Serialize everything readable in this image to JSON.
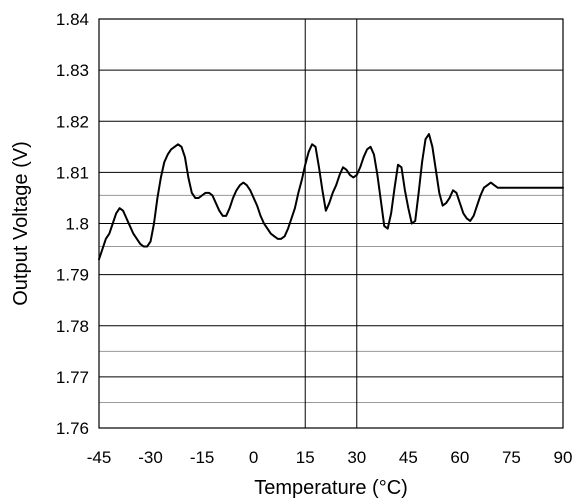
{
  "chart_data": {
    "type": "line",
    "title": "",
    "xlabel": "Temperature (°C)",
    "ylabel": "Output Voltage (V)",
    "xlim": [
      -45,
      90
    ],
    "ylim": [
      1.76,
      1.84
    ],
    "xticks": [
      "-45",
      "-30",
      "-15",
      "0",
      "15",
      "30",
      "45",
      "60",
      "75",
      "90"
    ],
    "yticks": [
      "1.76",
      "1.77",
      "1.78",
      "1.79",
      "1.8",
      "1.81",
      "1.82",
      "1.83",
      "1.84"
    ],
    "grid": true,
    "legend": "none",
    "series": [
      {
        "color": "#000000",
        "x": [
          -45,
          -44,
          -43,
          -42,
          -41,
          -40,
          -39,
          -38,
          -37,
          -36,
          -35,
          -34,
          -33,
          -32,
          -31,
          -30,
          -29,
          -28,
          -27,
          -26,
          -25,
          -24,
          -23,
          -22,
          -21,
          -20,
          -19,
          -18,
          -17,
          -16,
          -15,
          -14,
          -13,
          -12,
          -11,
          -10,
          -9,
          -8,
          -7,
          -6,
          -5,
          -4,
          -3,
          -2,
          -1,
          0,
          1,
          2,
          3,
          4,
          5,
          6,
          7,
          8,
          9,
          10,
          11,
          12,
          13,
          14,
          15,
          16,
          17,
          18,
          19,
          20,
          21,
          22,
          23,
          24,
          25,
          26,
          27,
          28,
          29,
          30,
          31,
          32,
          33,
          34,
          35,
          36,
          37,
          38,
          39,
          40,
          41,
          42,
          43,
          44,
          45,
          46,
          47,
          48,
          49,
          50,
          51,
          52,
          53,
          54,
          55,
          56,
          57,
          58,
          59,
          60,
          61,
          62,
          63,
          64,
          65,
          66,
          67,
          68,
          69,
          70,
          71,
          72,
          73,
          74,
          75,
          76,
          77,
          78,
          79,
          80,
          81,
          82,
          83,
          84,
          85,
          86,
          87,
          88,
          89,
          90
        ],
        "y": [
          1.793,
          1.795,
          1.797,
          1.798,
          1.8,
          1.802,
          1.803,
          1.8025,
          1.801,
          1.7995,
          1.798,
          1.797,
          1.796,
          1.7955,
          1.7955,
          1.7965,
          1.8,
          1.805,
          1.809,
          1.812,
          1.8135,
          1.8145,
          1.815,
          1.8155,
          1.815,
          1.813,
          1.809,
          1.806,
          1.805,
          1.805,
          1.8055,
          1.806,
          1.806,
          1.8055,
          1.804,
          1.8025,
          1.8015,
          1.8015,
          1.803,
          1.805,
          1.8065,
          1.8075,
          1.808,
          1.8075,
          1.8065,
          1.805,
          1.8035,
          1.8015,
          1.8,
          1.799,
          1.798,
          1.7975,
          1.797,
          1.797,
          1.7975,
          1.799,
          1.801,
          1.803,
          1.806,
          1.8085,
          1.8115,
          1.814,
          1.8155,
          1.815,
          1.811,
          1.8065,
          1.8025,
          1.804,
          1.806,
          1.8075,
          1.8095,
          1.811,
          1.8105,
          1.8095,
          1.809,
          1.8095,
          1.811,
          1.813,
          1.8145,
          1.815,
          1.8135,
          1.8095,
          1.8045,
          1.7995,
          1.799,
          1.802,
          1.807,
          1.8115,
          1.811,
          1.8065,
          1.803,
          1.8,
          1.8005,
          1.806,
          1.812,
          1.8165,
          1.8175,
          1.815,
          1.8105,
          1.806,
          1.8035,
          1.804,
          1.805,
          1.8065,
          1.806,
          1.804,
          1.802,
          1.801,
          1.8005,
          1.8015,
          1.8035,
          1.8055,
          1.807,
          1.8075,
          1.808,
          1.8075,
          1.807,
          1.807,
          1.807,
          1.807,
          1.807,
          1.807,
          1.807,
          1.807,
          1.807,
          1.807,
          1.807,
          1.807,
          1.807,
          1.807,
          1.807,
          1.807,
          1.807,
          1.807,
          1.807,
          1.807
        ]
      }
    ]
  }
}
